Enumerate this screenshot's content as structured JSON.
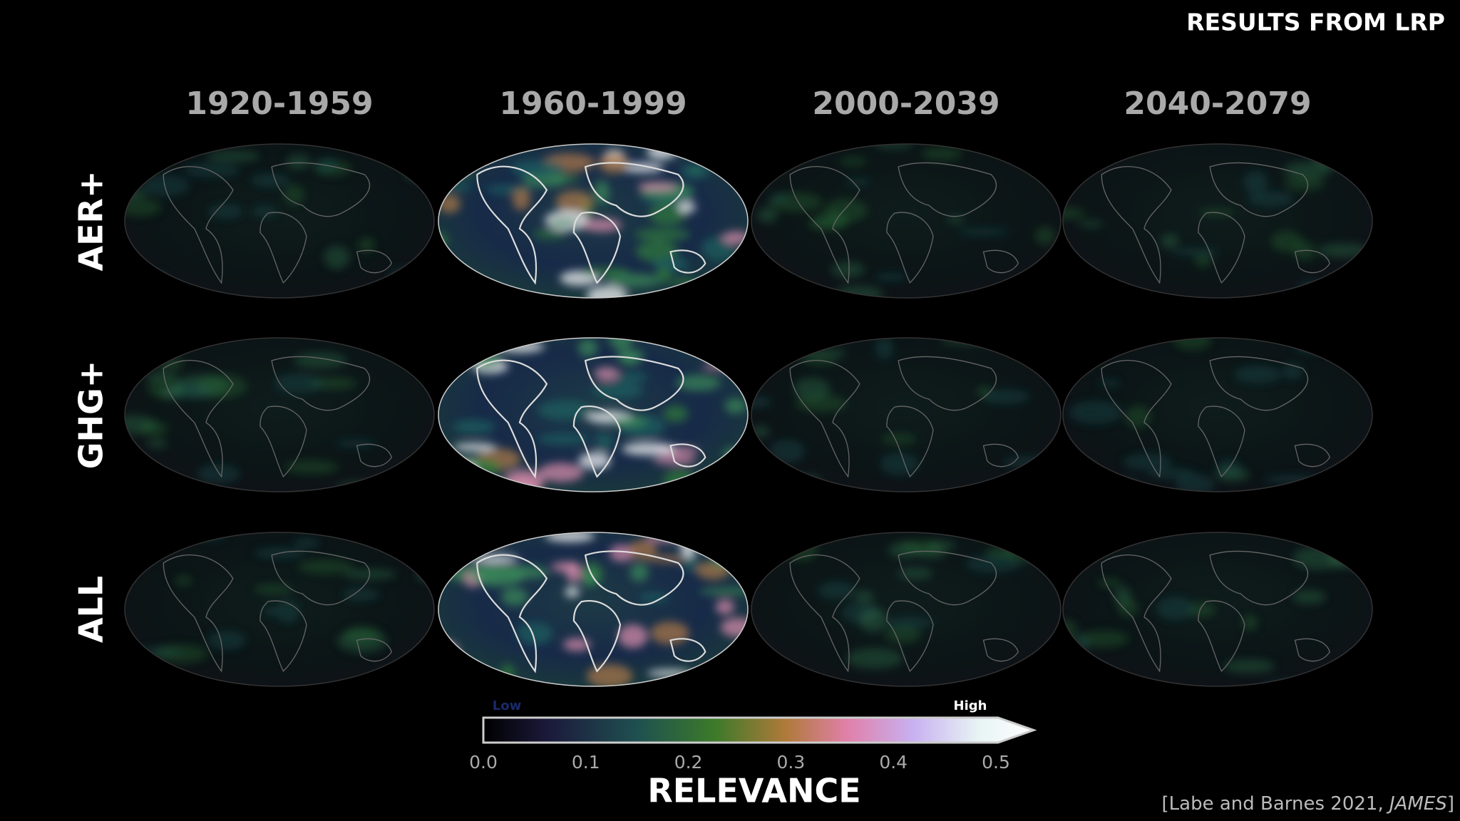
{
  "header": {
    "title": "RESULTS FROM LRP"
  },
  "columns": [
    "1920-1959",
    "1960-1999",
    "2000-2039",
    "2040-2079"
  ],
  "rows": [
    "AER+",
    "GHG+",
    "ALL"
  ],
  "colorbar": {
    "low_label": "Low",
    "high_label": "High",
    "ticks": [
      "0.0",
      "0.1",
      "0.2",
      "0.3",
      "0.4",
      "0.5"
    ],
    "label": "RELEVANCE"
  },
  "citation": {
    "prefix": "[Labe and Barnes 2021, ",
    "journal": "JAMES",
    "suffix": "]"
  }
}
